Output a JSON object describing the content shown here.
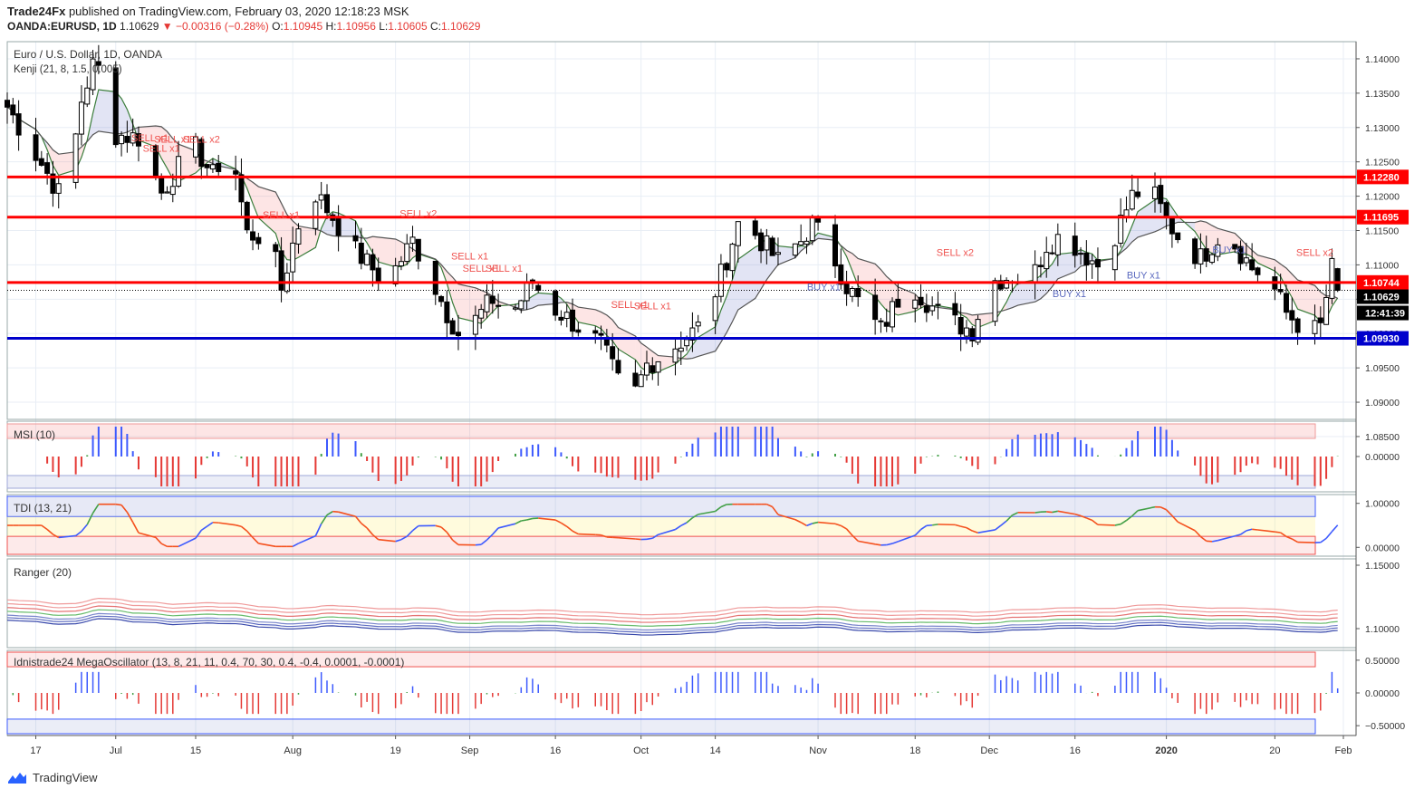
{
  "header": {
    "publisher": "Trade24Fx",
    "published_text": "published on TradingView.com, February 03, 2020 12:18:23 MSK",
    "symbol": "OANDA:EURUSD, 1D",
    "last": "1.10629",
    "change": "−0.00316 (−0.28%)",
    "o_label": "O:",
    "o": "1.10945",
    "h_label": "H:",
    "h": "1.10956",
    "l_label": "L:",
    "l": "1.10605",
    "c_label": "C:",
    "c": "1.10629"
  },
  "main_pane": {
    "title": "Euro / U.S. Dollar, 1D, OANDA",
    "indicator": "Kenji (21, 8, 1.5, 0.005)"
  },
  "colors": {
    "bull": "#ffffff",
    "bear": "#000000",
    "level_red": "#ff0000",
    "level_blue": "#0000cc",
    "sell": "#ef5350",
    "buy": "#5c6bc0",
    "grid": "#e8eef5"
  },
  "chart_data": [
    {
      "type": "candlestick",
      "title": "Euro / U.S. Dollar, 1D, OANDA",
      "ylim": [
        1.0875,
        1.1425
      ],
      "y_ticks": [
        "1.14000",
        "1.13500",
        "1.13000",
        "1.12500",
        "1.12000",
        "1.11500",
        "1.11000",
        "1.10500",
        "1.10000",
        "1.09500",
        "1.09000",
        "1.08500"
      ],
      "x_ticks": [
        "17",
        "Jul",
        "15",
        "Aug",
        "19",
        "Sep",
        "16",
        "Oct",
        "14",
        "Nov",
        "18",
        "Dec",
        "16",
        "2020",
        "20",
        "Feb"
      ],
      "x_tick_days": [
        -14,
        0,
        14,
        31,
        49,
        62,
        77,
        92,
        105,
        123,
        140,
        153,
        168,
        184,
        203,
        215
      ],
      "x_range_days": [
        -19,
        215
      ],
      "closes_anchor": [
        [
          -19,
          1.133
        ],
        [
          -15,
          1.1275
        ],
        [
          -10,
          1.1205
        ],
        [
          -8,
          1.1235
        ],
        [
          -6,
          1.134
        ],
        [
          -4,
          1.139
        ],
        [
          -2,
          1.138
        ],
        [
          0,
          1.129
        ],
        [
          4,
          1.1285
        ],
        [
          8,
          1.1205
        ],
        [
          12,
          1.1255
        ],
        [
          14,
          1.127
        ],
        [
          17,
          1.123
        ],
        [
          20,
          1.128
        ],
        [
          23,
          1.1145
        ],
        [
          27,
          1.114
        ],
        [
          29,
          1.1065
        ],
        [
          31,
          1.113
        ],
        [
          34,
          1.1215
        ],
        [
          38,
          1.117
        ],
        [
          42,
          1.112
        ],
        [
          46,
          1.1085
        ],
        [
          49,
          1.1095
        ],
        [
          52,
          1.1135
        ],
        [
          55,
          1.1085
        ],
        [
          58,
          1.103
        ],
        [
          61,
          1.0985
        ],
        [
          63,
          1.102
        ],
        [
          66,
          1.105
        ],
        [
          69,
          1.1025
        ],
        [
          73,
          1.1075
        ],
        [
          77,
          1.1035
        ],
        [
          81,
          1.101
        ],
        [
          85,
          1.0985
        ],
        [
          88,
          1.093
        ],
        [
          90,
          1.0895
        ],
        [
          93,
          1.0955
        ],
        [
          96,
          1.097
        ],
        [
          100,
          1.0995
        ],
        [
          103,
          1.1015
        ],
        [
          106,
          1.1085
        ],
        [
          109,
          1.116
        ],
        [
          112,
          1.1145
        ],
        [
          116,
          1.1105
        ],
        [
          120,
          1.1135
        ],
        [
          122,
          1.116
        ],
        [
          125,
          1.1125
        ],
        [
          128,
          1.107
        ],
        [
          131,
          1.1035
        ],
        [
          134,
          1.1005
        ],
        [
          137,
          1.105
        ],
        [
          140,
          1.1065
        ],
        [
          144,
          1.103
        ],
        [
          147,
          1.1015
        ],
        [
          150,
          1.1005
        ],
        [
          153,
          1.1075
        ],
        [
          157,
          1.1085
        ],
        [
          160,
          1.107
        ],
        [
          163,
          1.113
        ],
        [
          166,
          1.1145
        ],
        [
          169,
          1.112
        ],
        [
          172,
          1.11
        ],
        [
          175,
          1.1145
        ],
        [
          178,
          1.12
        ],
        [
          181,
          1.1215
        ],
        [
          184,
          1.1165
        ],
        [
          187,
          1.113
        ],
        [
          190,
          1.111
        ],
        [
          193,
          1.114
        ],
        [
          196,
          1.113
        ],
        [
          199,
          1.1095
        ],
        [
          202,
          1.108
        ],
        [
          205,
          1.103
        ],
        [
          207,
          1.1015
        ],
        [
          209,
          1.1
        ],
        [
          211,
          1.101
        ],
        [
          213,
          1.1095
        ],
        [
          214,
          1.10629
        ]
      ],
      "levels": [
        {
          "label": "1.12280",
          "value": 1.1228,
          "color": "#ff0000"
        },
        {
          "label": "1.11695",
          "value": 1.11695,
          "color": "#ff0000"
        },
        {
          "label": "1.10744",
          "value": 1.10744,
          "color": "#ff0000"
        },
        {
          "label": "1.09930",
          "value": 1.0993,
          "color": "#0000cc"
        }
      ],
      "last_price": {
        "label": "1.10629",
        "value": 1.10629
      },
      "countdown": "12:41:39",
      "signals": [
        {
          "text": "SELL x1",
          "day": 6,
          "price": 1.128,
          "side": "sell"
        },
        {
          "text": "SELL x1",
          "day": 10,
          "price": 1.1278,
          "side": "sell"
        },
        {
          "text": "SELL x2",
          "day": 15,
          "price": 1.1278,
          "side": "sell"
        },
        {
          "text": "SELL x1",
          "day": 8,
          "price": 1.1265,
          "side": "sell"
        },
        {
          "text": "SELL x1",
          "day": 29,
          "price": 1.1168,
          "side": "sell"
        },
        {
          "text": "SELL x2",
          "day": 53,
          "price": 1.117,
          "side": "sell"
        },
        {
          "text": "SELL x1",
          "day": 62,
          "price": 1.1108,
          "side": "sell"
        },
        {
          "text": "SELL x1",
          "day": 64,
          "price": 1.109,
          "side": "sell"
        },
        {
          "text": "SELL x1",
          "day": 68,
          "price": 1.109,
          "side": "sell"
        },
        {
          "text": "SELL x1",
          "day": 90,
          "price": 1.1037,
          "side": "sell"
        },
        {
          "text": "SELL x1",
          "day": 94,
          "price": 1.1035,
          "side": "sell"
        },
        {
          "text": "SELL x2",
          "day": 147,
          "price": 1.1113,
          "side": "sell"
        },
        {
          "text": "BUY x1",
          "day": 124,
          "price": 1.1063,
          "side": "buy"
        },
        {
          "text": "BUY x1",
          "day": 167,
          "price": 1.1053,
          "side": "buy"
        },
        {
          "text": "BUY x1",
          "day": 180,
          "price": 1.108,
          "side": "buy"
        },
        {
          "text": "BUY x1",
          "day": 195,
          "price": 1.1117,
          "side": "buy"
        },
        {
          "text": "SELL x2",
          "day": 210,
          "price": 1.1113,
          "side": "sell"
        }
      ]
    },
    {
      "type": "histogram",
      "title": "MSI (10)",
      "y_ticks": [
        "0.00000"
      ]
    },
    {
      "type": "line",
      "title": "TDI (13, 21)",
      "y_ticks": [
        "1.00000",
        "0.00000"
      ]
    },
    {
      "type": "line",
      "title": "Ranger (20)",
      "y_ticks": [
        "1.15000",
        "1.10000"
      ]
    },
    {
      "type": "histogram",
      "title": "Idnistrade24 MegaOscillator (13, 8, 21, 11, 0.4, 70, 30, 0.4, -0.4, 0.0001, -0.0001)",
      "y_ticks": [
        "0.50000",
        "0.00000",
        "−0.50000"
      ]
    }
  ],
  "footer": {
    "brand": "TradingView"
  }
}
